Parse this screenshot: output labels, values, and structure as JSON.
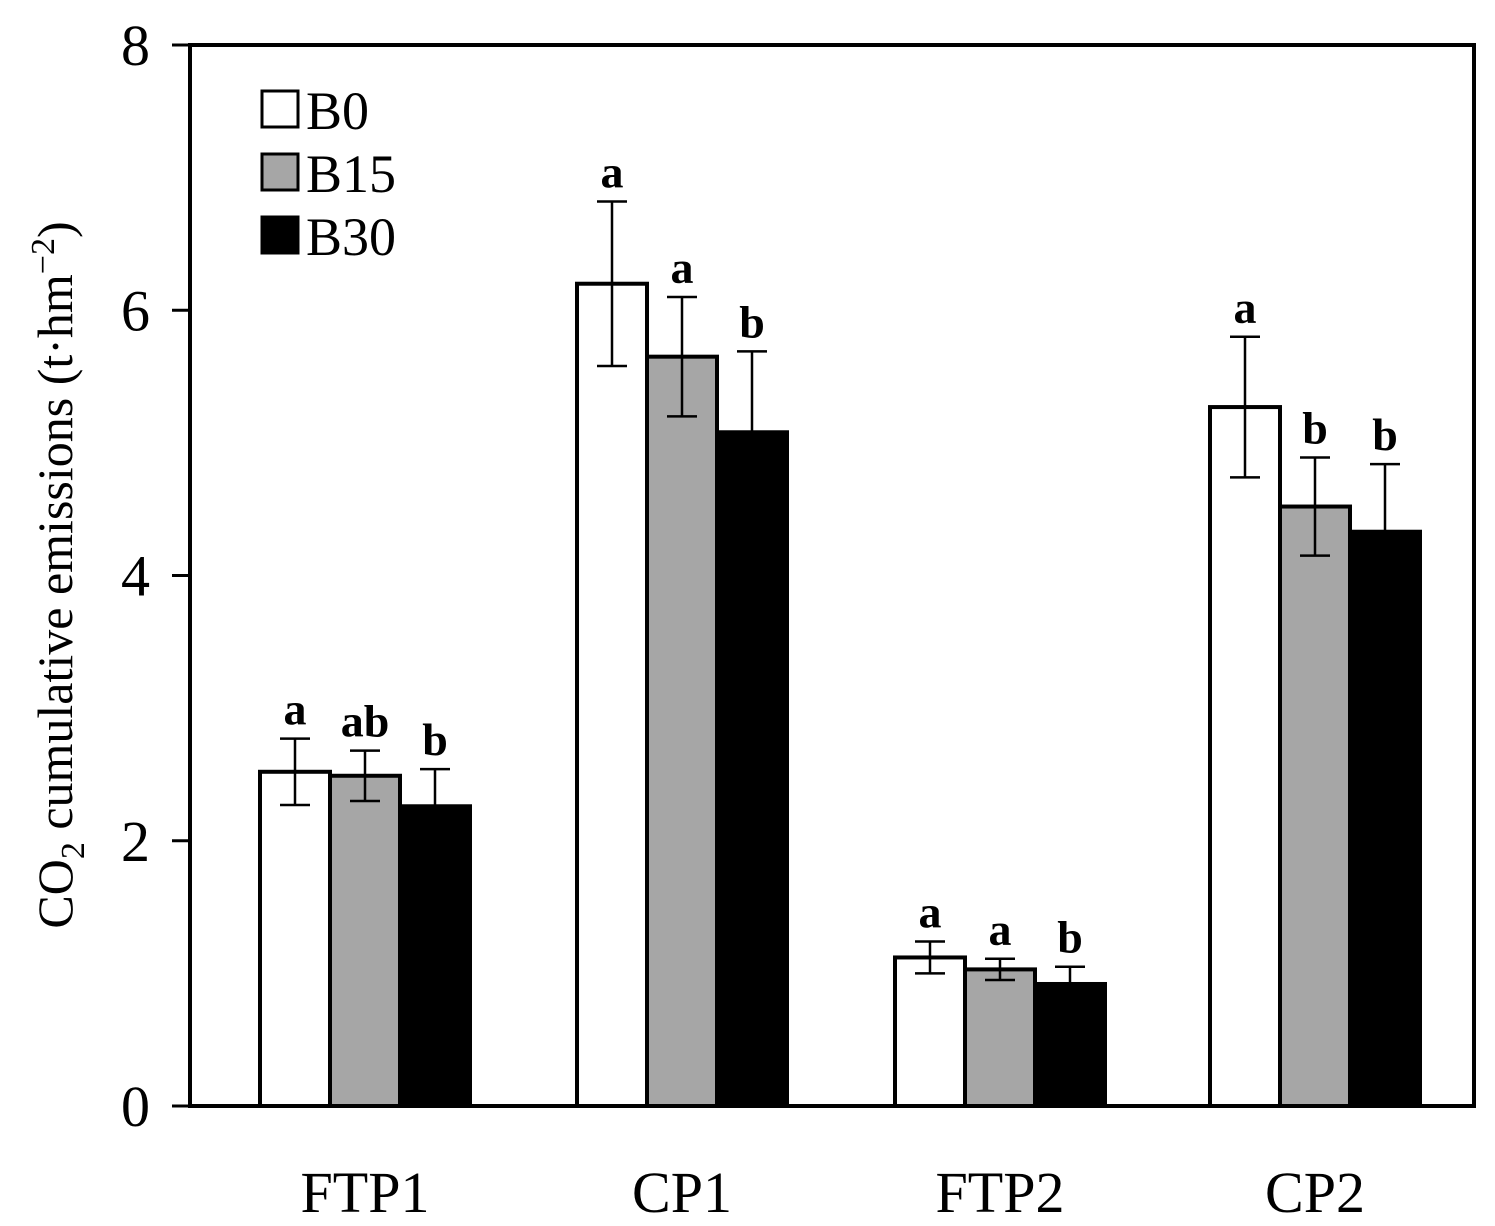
{
  "chart_data": {
    "type": "bar",
    "title": "",
    "xlabel": "",
    "ylabel": {
      "main": "CO",
      "sub": "2",
      "rest": " cumulative emissions (t·hm",
      "sup": "−2",
      "close": ")"
    },
    "ylim": [
      0,
      8
    ],
    "yticks": [
      "0",
      "2",
      "4",
      "6",
      "8"
    ],
    "grid": false,
    "legend_position": "top-left",
    "categories": [
      "FTP1",
      "CP1",
      "FTP2",
      "CP2"
    ],
    "series": [
      {
        "name": "B0",
        "color": "#ffffff",
        "values": [
          2.52,
          6.2,
          1.12,
          5.27
        ],
        "errors": [
          0.25,
          0.62,
          0.12,
          0.53
        ],
        "significance": [
          "a",
          "a",
          "a",
          "a"
        ]
      },
      {
        "name": "B15",
        "color": "#a6a6a6",
        "values": [
          2.49,
          5.65,
          1.03,
          4.52
        ],
        "errors": [
          0.19,
          0.45,
          0.08,
          0.37
        ],
        "significance": [
          "ab",
          "a",
          "a",
          "b"
        ]
      },
      {
        "name": "B30",
        "color": "#000000",
        "values": [
          2.26,
          5.08,
          0.92,
          4.33
        ],
        "errors": [
          0.28,
          0.61,
          0.13,
          0.51
        ],
        "significance": [
          "b",
          "b",
          "b",
          "b"
        ]
      }
    ]
  }
}
